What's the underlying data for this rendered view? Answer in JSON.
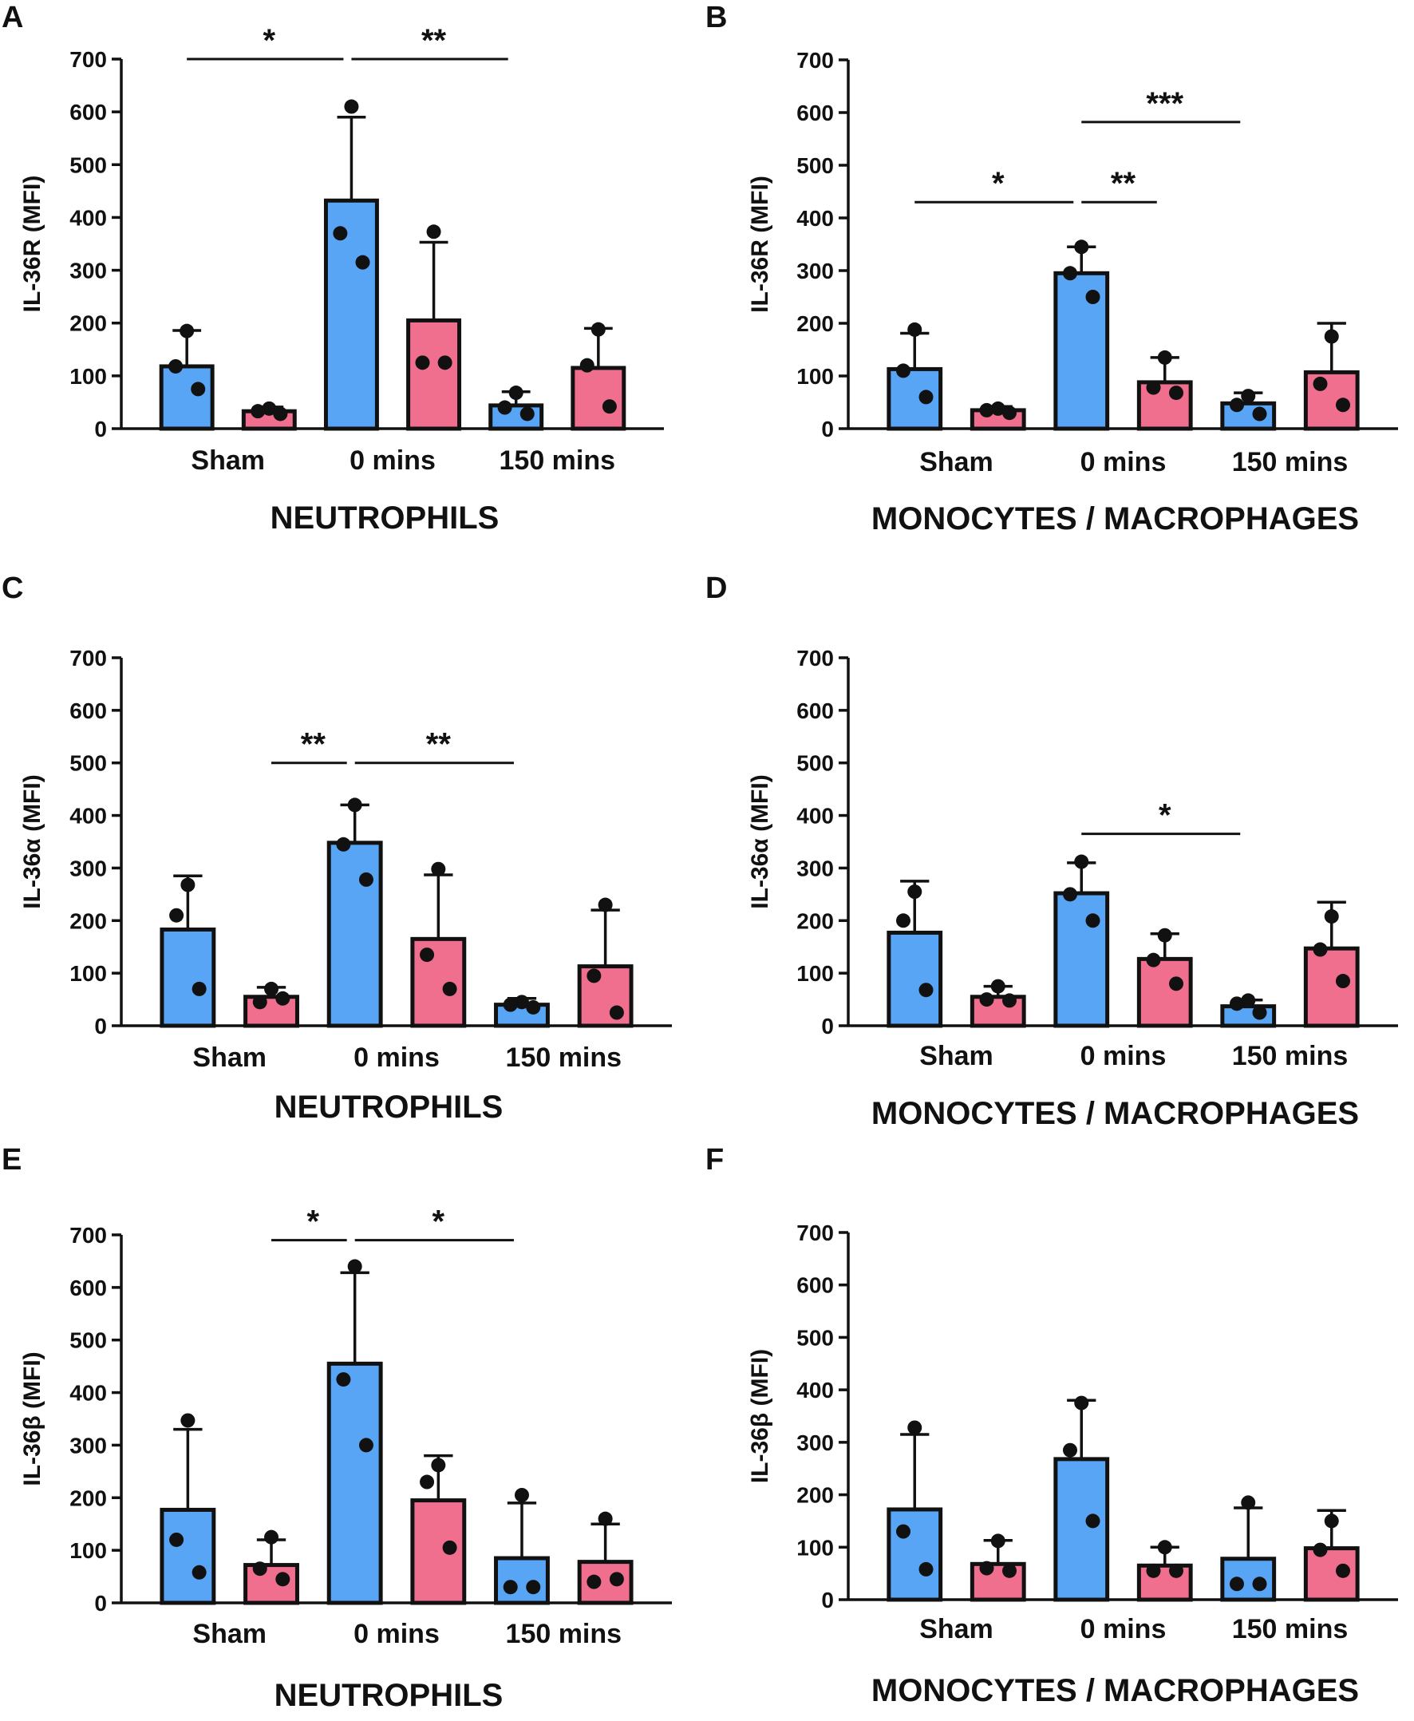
{
  "figure": {
    "colors": {
      "group_blue": "#59A5F5",
      "group_pink": "#F06E8E",
      "outline": "#111111"
    },
    "panels": [
      {
        "id": "A",
        "letter": "A",
        "ylabel": "IL-36R (MFI)",
        "xtitle": "NEUTROPHILS",
        "chart_data": {
          "type": "bar",
          "ylim": [
            0,
            700
          ],
          "yticks": [
            0,
            100,
            200,
            300,
            400,
            500,
            600,
            700
          ],
          "categories": [
            "Sham",
            "0 mins",
            "150 mins"
          ],
          "series": [
            {
              "name": "blue",
              "values": [
                118,
                432,
                44
              ],
              "errors": [
                68,
                158,
                26
              ],
              "points": [
                [
                  185,
                  118,
                  75
                ],
                [
                  610,
                  370,
                  315
                ],
                [
                  68,
                  40,
                  28
                ]
              ]
            },
            {
              "name": "pink",
              "values": [
                33,
                205,
                115
              ],
              "errors": [
                8,
                148,
                75
              ],
              "points": [
                [
                  38,
                  33,
                  28
                ],
                [
                  373,
                  125,
                  125
                ],
                [
                  188,
                  120,
                  42
                ]
              ]
            }
          ],
          "significance": [
            {
              "from": [
                0,
                "blue"
              ],
              "to": [
                1,
                "blue"
              ],
              "y": 700,
              "label": "*"
            },
            {
              "from": [
                1,
                "blue"
              ],
              "to": [
                2,
                "blue"
              ],
              "y": 700,
              "label": "**"
            }
          ]
        }
      },
      {
        "id": "B",
        "letter": "B",
        "ylabel": "IL-36R (MFI)",
        "xtitle": "MONOCYTES / MACROPHAGES",
        "chart_data": {
          "type": "bar",
          "ylim": [
            0,
            700
          ],
          "yticks": [
            0,
            100,
            200,
            300,
            400,
            500,
            600,
            700
          ],
          "categories": [
            "Sham",
            "0 mins",
            "150 mins"
          ],
          "series": [
            {
              "name": "blue",
              "values": [
                113,
                295,
                48
              ],
              "errors": [
                68,
                50,
                20
              ],
              "points": [
                [
                  188,
                  110,
                  60
                ],
                [
                  345,
                  295,
                  250
                ],
                [
                  62,
                  45,
                  28
                ]
              ]
            },
            {
              "name": "pink",
              "values": [
                35,
                88,
                107
              ],
              "errors": [
                7,
                47,
                93
              ],
              "points": [
                [
                  38,
                  35,
                  30
                ],
                [
                  135,
                  78,
                  68
                ],
                [
                  175,
                  85,
                  45
                ]
              ]
            }
          ],
          "significance": [
            {
              "from": [
                0,
                "blue"
              ],
              "to": [
                1,
                "blue"
              ],
              "y": 430,
              "label": "*"
            },
            {
              "from": [
                1,
                "blue"
              ],
              "to": [
                1,
                "pink"
              ],
              "y": 430,
              "label": "**"
            },
            {
              "from": [
                1,
                "blue"
              ],
              "to": [
                2,
                "blue"
              ],
              "y": 582,
              "label": "***"
            }
          ]
        }
      },
      {
        "id": "C",
        "letter": "C",
        "ylabel": "IL-36α (MFI)",
        "xtitle": "NEUTROPHILS",
        "chart_data": {
          "type": "bar",
          "ylim": [
            0,
            700
          ],
          "yticks": [
            0,
            100,
            200,
            300,
            400,
            500,
            600,
            700
          ],
          "categories": [
            "Sham",
            "0 mins",
            "150 mins"
          ],
          "series": [
            {
              "name": "blue",
              "values": [
                183,
                348,
                40
              ],
              "errors": [
                102,
                72,
                12
              ],
              "points": [
                [
                  268,
                  210,
                  70
                ],
                [
                  420,
                  345,
                  278
                ],
                [
                  45,
                  40,
                  35
                ]
              ]
            },
            {
              "name": "pink",
              "values": [
                55,
                165,
                113
              ],
              "errors": [
                18,
                122,
                107
              ],
              "points": [
                [
                  70,
                  45,
                  52
                ],
                [
                  298,
                  135,
                  70
                ],
                [
                  230,
                  95,
                  25
                ]
              ]
            }
          ],
          "significance": [
            {
              "from": [
                0,
                "pink"
              ],
              "to": [
                1,
                "blue"
              ],
              "y": 500,
              "label": "**"
            },
            {
              "from": [
                1,
                "blue"
              ],
              "to": [
                2,
                "blue"
              ],
              "y": 500,
              "label": "**"
            }
          ]
        }
      },
      {
        "id": "D",
        "letter": "D",
        "ylabel": "IL-36α (MFI)",
        "xtitle": "MONOCYTES / MACROPHAGES",
        "chart_data": {
          "type": "bar",
          "ylim": [
            0,
            700
          ],
          "yticks": [
            0,
            100,
            200,
            300,
            400,
            500,
            600,
            700
          ],
          "categories": [
            "Sham",
            "0 mins",
            "150 mins"
          ],
          "series": [
            {
              "name": "blue",
              "values": [
                177,
                252,
                37
              ],
              "errors": [
                98,
                58,
                12
              ],
              "points": [
                [
                  255,
                  200,
                  68
                ],
                [
                  312,
                  250,
                  200
                ],
                [
                  48,
                  42,
                  25
                ]
              ]
            },
            {
              "name": "pink",
              "values": [
                55,
                127,
                147
              ],
              "errors": [
                20,
                48,
                88
              ],
              "points": [
                [
                  75,
                  50,
                  48
                ],
                [
                  172,
                  125,
                  80
                ],
                [
                  208,
                  145,
                  85
                ]
              ]
            }
          ],
          "significance": [
            {
              "from": [
                1,
                "blue"
              ],
              "to": [
                2,
                "blue"
              ],
              "y": 365,
              "label": "*"
            }
          ]
        }
      },
      {
        "id": "E",
        "letter": "E",
        "ylabel": "IL-36β (MFI)",
        "xtitle": "NEUTROPHILS",
        "chart_data": {
          "type": "bar",
          "ylim": [
            0,
            700
          ],
          "yticks": [
            0,
            100,
            200,
            300,
            400,
            500,
            600,
            700
          ],
          "categories": [
            "Sham",
            "0 mins",
            "150 mins"
          ],
          "series": [
            {
              "name": "blue",
              "values": [
                177,
                455,
                85
              ],
              "errors": [
                153,
                173,
                105
              ],
              "points": [
                [
                  347,
                  120,
                  58
                ],
                [
                  640,
                  425,
                  300
                ],
                [
                  205,
                  30,
                  30
                ]
              ]
            },
            {
              "name": "pink",
              "values": [
                72,
                195,
                78
              ],
              "errors": [
                48,
                85,
                72
              ],
              "points": [
                [
                  125,
                  65,
                  45
                ],
                [
                  262,
                  230,
                  105
                ],
                [
                  160,
                  40,
                  45
                ]
              ]
            }
          ],
          "significance": [
            {
              "from": [
                0,
                "pink"
              ],
              "to": [
                1,
                "blue"
              ],
              "y": 690,
              "label": "*"
            },
            {
              "from": [
                1,
                "blue"
              ],
              "to": [
                2,
                "blue"
              ],
              "y": 690,
              "label": "*"
            }
          ]
        }
      },
      {
        "id": "F",
        "letter": "F",
        "ylabel": "IL-36β (MFI)",
        "xtitle": "MONOCYTES / MACROPHAGES",
        "chart_data": {
          "type": "bar",
          "ylim": [
            0,
            700
          ],
          "yticks": [
            0,
            100,
            200,
            300,
            400,
            500,
            600,
            700
          ],
          "categories": [
            "Sham",
            "0 mins",
            "150 mins"
          ],
          "series": [
            {
              "name": "blue",
              "values": [
                172,
                268,
                78
              ],
              "errors": [
                143,
                112,
                97
              ],
              "points": [
                [
                  328,
                  130,
                  58
                ],
                [
                  375,
                  285,
                  150
                ],
                [
                  185,
                  30,
                  30
                ]
              ]
            },
            {
              "name": "pink",
              "values": [
                68,
                65,
                98
              ],
              "errors": [
                45,
                35,
                72
              ],
              "points": [
                [
                  112,
                  60,
                  55
                ],
                [
                  100,
                  55,
                  55
                ],
                [
                  150,
                  95,
                  55
                ]
              ]
            }
          ],
          "significance": []
        }
      }
    ]
  }
}
